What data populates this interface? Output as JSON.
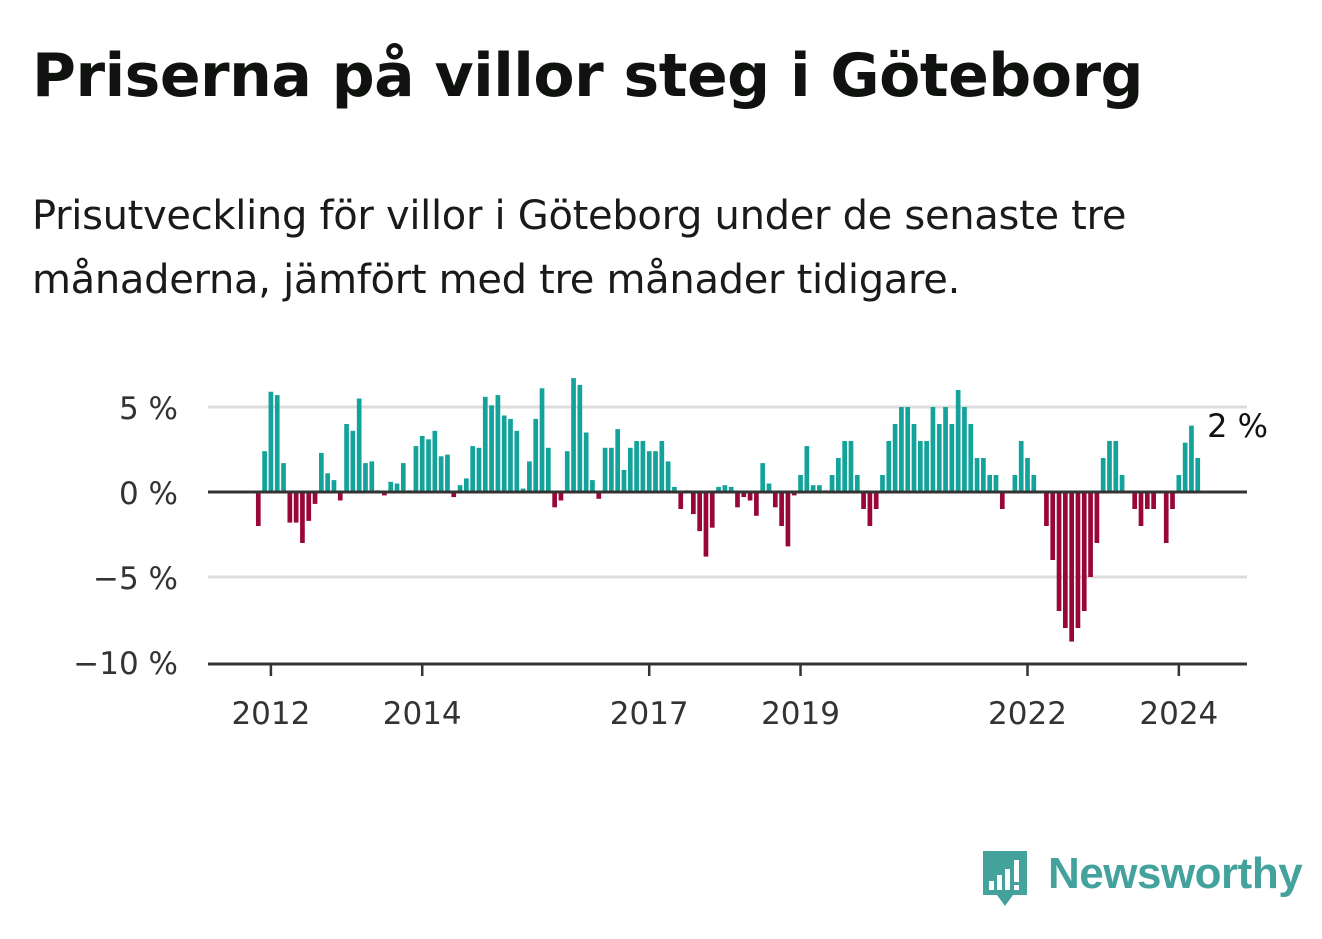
{
  "header": {
    "title": "Priserna på villor steg i Göteborg",
    "subtitle": "Prisutveckling för villor i Göteborg under de senaste tre månaderna, jämfört med tre månader tidigare."
  },
  "brand": {
    "name": "Newsworthy",
    "color": "#44a29c"
  },
  "colors": {
    "positive": "#13a39b",
    "negative": "#990738",
    "grid": "#dddddd",
    "axis": "#333333",
    "text": "#333333"
  },
  "chart_data": {
    "type": "bar",
    "title": "Priserna på villor steg i Göteborg",
    "xlabel": "",
    "ylabel": "",
    "unit": "%",
    "ylim": [
      -10,
      6.5
    ],
    "yticks": [
      {
        "value": 5,
        "label": "5 %"
      },
      {
        "value": 0,
        "label": "0 %"
      },
      {
        "value": -5,
        "label": "−5 %"
      },
      {
        "value": -10,
        "label": "−10 %"
      }
    ],
    "xticks": [
      {
        "index": 2,
        "label": "2012"
      },
      {
        "index": 26,
        "label": "2014"
      },
      {
        "index": 62,
        "label": "2017"
      },
      {
        "index": 86,
        "label": "2019"
      },
      {
        "index": 122,
        "label": "2022"
      },
      {
        "index": 146,
        "label": "2024"
      }
    ],
    "x_start": "2011-11",
    "frequency": "monthly",
    "values": [
      -2.0,
      2.4,
      5.9,
      5.7,
      1.7,
      -1.8,
      -1.8,
      -3.0,
      -1.7,
      -0.7,
      2.3,
      1.1,
      0.7,
      -0.5,
      4.0,
      3.6,
      5.5,
      1.7,
      1.8,
      0.1,
      -0.2,
      0.6,
      0.5,
      1.7,
      0.1,
      2.7,
      3.3,
      3.1,
      3.6,
      2.1,
      2.2,
      -0.3,
      0.4,
      0.8,
      2.7,
      2.6,
      5.6,
      5.1,
      5.7,
      4.5,
      4.3,
      3.6,
      0.2,
      1.8,
      4.3,
      6.1,
      2.6,
      -0.9,
      -0.5,
      2.4,
      6.7,
      6.3,
      3.5,
      0.7,
      -0.4,
      2.6,
      2.6,
      3.7,
      1.3,
      2.6,
      3.0,
      3.0,
      2.4,
      2.4,
      3.0,
      1.8,
      0.3,
      -1.0,
      0.1,
      -1.3,
      -2.3,
      -3.8,
      -2.1,
      0.3,
      0.4,
      0.3,
      -0.9,
      -0.3,
      -0.5,
      -1.4,
      1.7,
      0.5,
      -0.9,
      -2.0,
      -3.2,
      -0.2,
      1.0,
      2.7,
      0.4,
      0.4,
      0.1,
      1.0,
      2.0,
      3.0,
      3.0,
      1.0,
      -1.0,
      -2.0,
      -1.0,
      1.0,
      3.0,
      4.0,
      5.0,
      5.0,
      4.0,
      3.0,
      3.0,
      5.0,
      4.0,
      5.0,
      4.0,
      6.0,
      5.0,
      4.0,
      2.0,
      2.0,
      1.0,
      1.0,
      -1.0,
      0.0,
      1.0,
      3.0,
      2.0,
      1.0,
      0.0,
      -2.0,
      -4.0,
      -7.0,
      -8.0,
      -8.8,
      -8.0,
      -7.0,
      -5.0,
      -3.0,
      2.0,
      3.0,
      3.0,
      1.0,
      0.0,
      -1.0,
      -2.0,
      -1.0,
      -1.0,
      0.0,
      -3.0,
      -1.0,
      1.0,
      2.9,
      3.9,
      2.0
    ],
    "annotation": {
      "label": "2 %",
      "index": 155,
      "value": 2.0
    }
  }
}
